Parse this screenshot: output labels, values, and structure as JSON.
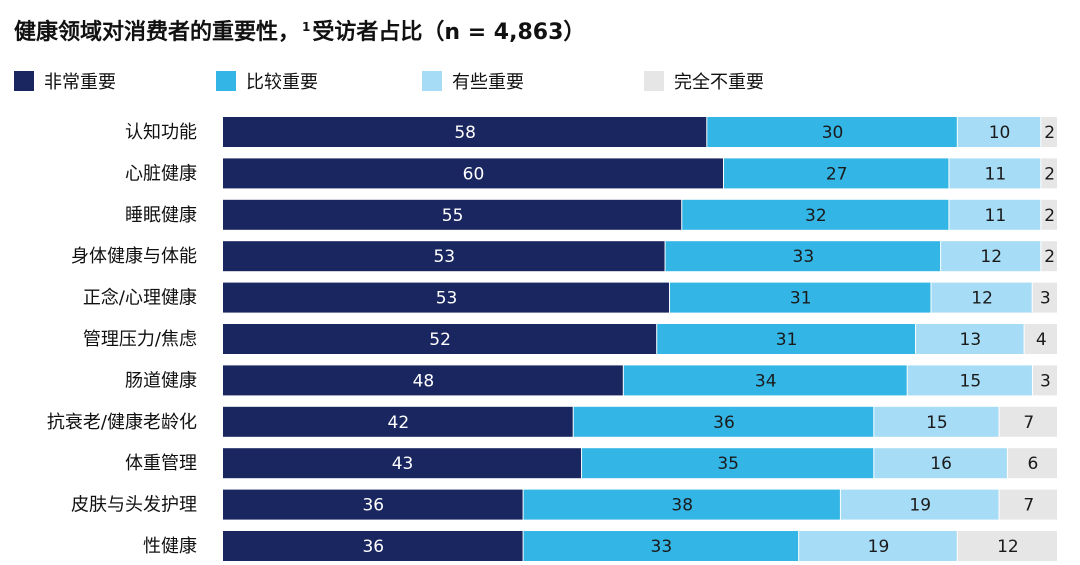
{
  "chart_data": {
    "type": "bar",
    "orientation": "horizontal",
    "stacked": true,
    "title": "健康领域对消费者的重要性，",
    "title_footnote": "1",
    "title_suffix": "受访者占比（n = 4,863）",
    "categories": [
      "认知功能",
      "心脏健康",
      "睡眠健康",
      "身体健康与体能",
      "正念/心理健康",
      "管理压力/焦虑",
      "肠道健康",
      "抗衰老/健康老龄化",
      "体重管理",
      "皮肤与头发护理",
      "性健康"
    ],
    "series": [
      {
        "name": "非常重要",
        "color": "#1a2660",
        "label_color": "#ffffff",
        "values": [
          58,
          60,
          55,
          53,
          53,
          52,
          48,
          42,
          43,
          36,
          36
        ]
      },
      {
        "name": "比较重要",
        "color": "#33b5e5",
        "label_color": "#1a1a1a",
        "values": [
          30,
          27,
          32,
          33,
          31,
          31,
          34,
          36,
          35,
          38,
          33
        ]
      },
      {
        "name": "有些重要",
        "color": "#a6dcf5",
        "label_color": "#1a1a1a",
        "values": [
          10,
          11,
          11,
          12,
          12,
          13,
          15,
          15,
          16,
          19,
          19
        ]
      },
      {
        "name": "完全不重要",
        "color": "#e6e6e6",
        "label_color": "#1a1a1a",
        "values": [
          2,
          2,
          2,
          2,
          3,
          4,
          3,
          7,
          6,
          7,
          12
        ]
      }
    ],
    "xlim": [
      0,
      100
    ],
    "grid": false,
    "legend_position": "top"
  }
}
